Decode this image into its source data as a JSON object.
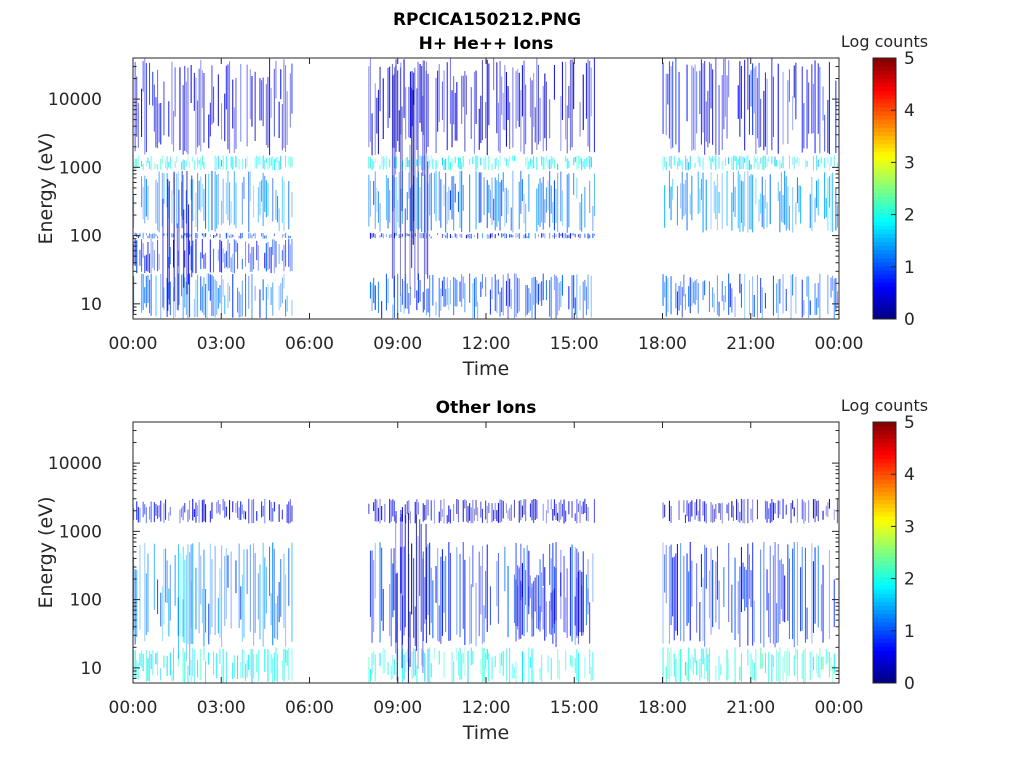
{
  "figure": {
    "title_line1": "RPCICA150212.PNG"
  },
  "chart_data": [
    {
      "type": "heatmap",
      "title": "H+ He++ Ions",
      "xlabel": "Time",
      "ylabel": "Energy (eV)",
      "x_ticks": [
        "00:00",
        "03:00",
        "06:00",
        "09:00",
        "12:00",
        "15:00",
        "18:00",
        "21:00",
        "00:00"
      ],
      "x_range_hours": [
        0,
        24
      ],
      "y_scale": "log",
      "y_ticks": [
        "10",
        "100",
        "1000",
        "10000"
      ],
      "y_tick_values": [
        10,
        100,
        1000,
        10000
      ],
      "y_range": [
        6,
        40000
      ],
      "colorbar": {
        "label": "Log counts",
        "ticks": [
          "0",
          "1",
          "2",
          "3",
          "4",
          "5"
        ],
        "range": [
          0,
          5
        ],
        "colormap": "jet"
      },
      "data_intervals_hours": [
        [
          0.0,
          5.4
        ],
        [
          8.0,
          15.7
        ],
        [
          18.0,
          24.0
        ]
      ],
      "bands": [
        {
          "t": [
            0.0,
            5.4
          ],
          "e": [
            6,
            28
          ],
          "v": 1.2
        },
        {
          "t": [
            0.0,
            5.4
          ],
          "e": [
            28,
            90
          ],
          "v": 0.8
        },
        {
          "t": [
            0.0,
            5.4
          ],
          "e": [
            90,
            110
          ],
          "v": 1.0
        },
        {
          "t": [
            0.0,
            5.4
          ],
          "e": [
            110,
            900
          ],
          "v": 1.3
        },
        {
          "t": [
            0.0,
            5.4
          ],
          "e": [
            900,
            1500
          ],
          "v": 1.9
        },
        {
          "t": [
            0.0,
            5.4
          ],
          "e": [
            1500,
            40000
          ],
          "v": 0.5
        },
        {
          "t": [
            1.0,
            2.0
          ],
          "e": [
            6,
            900
          ],
          "v": 0.4
        },
        {
          "t": [
            8.0,
            15.7
          ],
          "e": [
            6,
            28
          ],
          "v": 1.0
        },
        {
          "t": [
            8.0,
            15.7
          ],
          "e": [
            90,
            110
          ],
          "v": 0.9
        },
        {
          "t": [
            8.0,
            15.7
          ],
          "e": [
            110,
            900
          ],
          "v": 1.2
        },
        {
          "t": [
            8.0,
            15.7
          ],
          "e": [
            900,
            1500
          ],
          "v": 1.9
        },
        {
          "t": [
            8.0,
            15.7
          ],
          "e": [
            1500,
            40000
          ],
          "v": 0.4
        },
        {
          "t": [
            8.8,
            10.0
          ],
          "e": [
            6,
            40000
          ],
          "v": 0.3
        },
        {
          "t": [
            18.0,
            24.0
          ],
          "e": [
            6,
            28
          ],
          "v": 1.0
        },
        {
          "t": [
            18.0,
            24.0
          ],
          "e": [
            110,
            900
          ],
          "v": 1.4
        },
        {
          "t": [
            18.0,
            24.0
          ],
          "e": [
            900,
            1500
          ],
          "v": 1.8
        },
        {
          "t": [
            18.0,
            24.0
          ],
          "e": [
            1500,
            40000
          ],
          "v": 0.6
        }
      ]
    },
    {
      "type": "heatmap",
      "title": "Other Ions",
      "xlabel": "Time",
      "ylabel": "Energy (eV)",
      "x_ticks": [
        "00:00",
        "03:00",
        "06:00",
        "09:00",
        "12:00",
        "15:00",
        "18:00",
        "21:00",
        "00:00"
      ],
      "x_range_hours": [
        0,
        24
      ],
      "y_scale": "log",
      "y_ticks": [
        "10",
        "100",
        "1000",
        "10000"
      ],
      "y_tick_values": [
        10,
        100,
        1000,
        10000
      ],
      "y_range": [
        6,
        40000
      ],
      "colorbar": {
        "label": "Log counts",
        "ticks": [
          "0",
          "1",
          "2",
          "3",
          "4",
          "5"
        ],
        "range": [
          0,
          5
        ],
        "colormap": "jet"
      },
      "data_intervals_hours": [
        [
          0.0,
          5.4
        ],
        [
          8.0,
          15.7
        ],
        [
          18.0,
          24.0
        ]
      ],
      "bands": [
        {
          "t": [
            0.0,
            5.4
          ],
          "e": [
            6,
            20
          ],
          "v": 1.9
        },
        {
          "t": [
            0.0,
            5.4
          ],
          "e": [
            20,
            700
          ],
          "v": 1.2
        },
        {
          "t": [
            0.0,
            5.4
          ],
          "e": [
            1300,
            3000
          ],
          "v": 0.6
        },
        {
          "t": [
            1.2,
            2.0
          ],
          "e": [
            6,
            700
          ],
          "v": 1.7
        },
        {
          "t": [
            8.0,
            15.7
          ],
          "e": [
            6,
            20
          ],
          "v": 1.9
        },
        {
          "t": [
            8.0,
            15.7
          ],
          "e": [
            20,
            700
          ],
          "v": 0.9
        },
        {
          "t": [
            8.0,
            15.7
          ],
          "e": [
            1300,
            3000
          ],
          "v": 0.4
        },
        {
          "t": [
            8.8,
            10.0
          ],
          "e": [
            6,
            3000
          ],
          "v": 0.3
        },
        {
          "t": [
            13.0,
            15.5
          ],
          "e": [
            25,
            300
          ],
          "v": 0.6
        },
        {
          "t": [
            18.0,
            24.0
          ],
          "e": [
            6,
            20
          ],
          "v": 2.0
        },
        {
          "t": [
            18.0,
            24.0
          ],
          "e": [
            20,
            700
          ],
          "v": 0.9
        },
        {
          "t": [
            18.0,
            24.0
          ],
          "e": [
            1300,
            3000
          ],
          "v": 0.4
        }
      ]
    }
  ]
}
